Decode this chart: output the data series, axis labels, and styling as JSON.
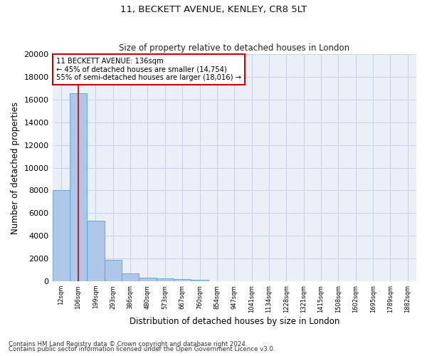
{
  "title1": "11, BECKETT AVENUE, KENLEY, CR8 5LT",
  "title2": "Size of property relative to detached houses in London",
  "xlabel": "Distribution of detached houses by size in London",
  "ylabel": "Number of detached properties",
  "categories": [
    "12sqm",
    "106sqm",
    "199sqm",
    "293sqm",
    "386sqm",
    "480sqm",
    "573sqm",
    "667sqm",
    "760sqm",
    "854sqm",
    "947sqm",
    "1041sqm",
    "1134sqm",
    "1228sqm",
    "1321sqm",
    "1415sqm",
    "1508sqm",
    "1602sqm",
    "1695sqm",
    "1789sqm",
    "1882sqm"
  ],
  "values": [
    8050,
    16550,
    5350,
    1850,
    680,
    310,
    220,
    175,
    150,
    0,
    0,
    0,
    0,
    0,
    0,
    0,
    0,
    0,
    0,
    0,
    0
  ],
  "bar_color": "#aec6e8",
  "bar_edge_color": "#5a9fd4",
  "vline_x": 1.0,
  "vline_color": "#cc0000",
  "annotation_title": "11 BECKETT AVENUE: 136sqm",
  "annotation_line2": "← 45% of detached houses are smaller (14,754)",
  "annotation_line3": "55% of semi-detached houses are larger (18,016) →",
  "annotation_box_color": "#cc0000",
  "ylim": [
    0,
    20000
  ],
  "yticks": [
    0,
    2000,
    4000,
    6000,
    8000,
    10000,
    12000,
    14000,
    16000,
    18000,
    20000
  ],
  "grid_color": "#c8d4e8",
  "bg_color": "#eaeff8",
  "footnote1": "Contains HM Land Registry data © Crown copyright and database right 2024.",
  "footnote2": "Contains public sector information licensed under the Open Government Licence v3.0."
}
